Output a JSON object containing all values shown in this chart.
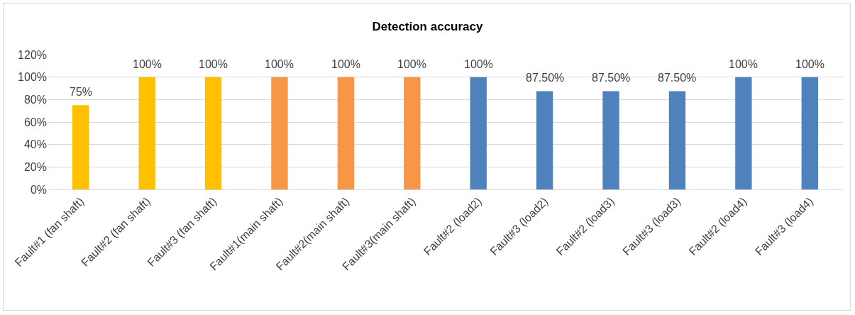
{
  "chart_data": {
    "type": "bar",
    "title": "Detection accuracy",
    "categories": [
      "Fault#1 (fan shaft)",
      "Fault#2 (fan shaft)",
      "Fault#3 (fan shaft)",
      "Fault#1(main shaft)",
      "Fault#2(main shaft)",
      "Fault#3(main shaft)",
      "Fault#2 (load2)",
      "Fault#3 (load2)",
      "Fault#2 (load3)",
      "Fault#3 (load3)",
      "Fault#2 (load4)",
      "Fault#3 (load4)"
    ],
    "values": [
      75,
      100,
      100,
      100,
      100,
      100,
      100,
      87.5,
      87.5,
      87.5,
      100,
      100
    ],
    "value_labels": [
      "75%",
      "100%",
      "100%",
      "100%",
      "100%",
      "100%",
      "100%",
      "87.50%",
      "87.50%",
      "87.50%",
      "100%",
      "100%"
    ],
    "colors": [
      "#ffc000",
      "#ffc000",
      "#ffc000",
      "#f79646",
      "#f79646",
      "#f79646",
      "#4f81bd",
      "#4f81bd",
      "#4f81bd",
      "#4f81bd",
      "#4f81bd",
      "#4f81bd"
    ],
    "ylim": [
      0,
      120
    ],
    "yticks": [
      {
        "value": 0,
        "label": "0%"
      },
      {
        "value": 20,
        "label": "20%"
      },
      {
        "value": 40,
        "label": "40%"
      },
      {
        "value": 60,
        "label": "60%"
      },
      {
        "value": 80,
        "label": "80%"
      },
      {
        "value": 100,
        "label": "100%"
      },
      {
        "value": 120,
        "label": "120%"
      }
    ],
    "grid": "y"
  }
}
